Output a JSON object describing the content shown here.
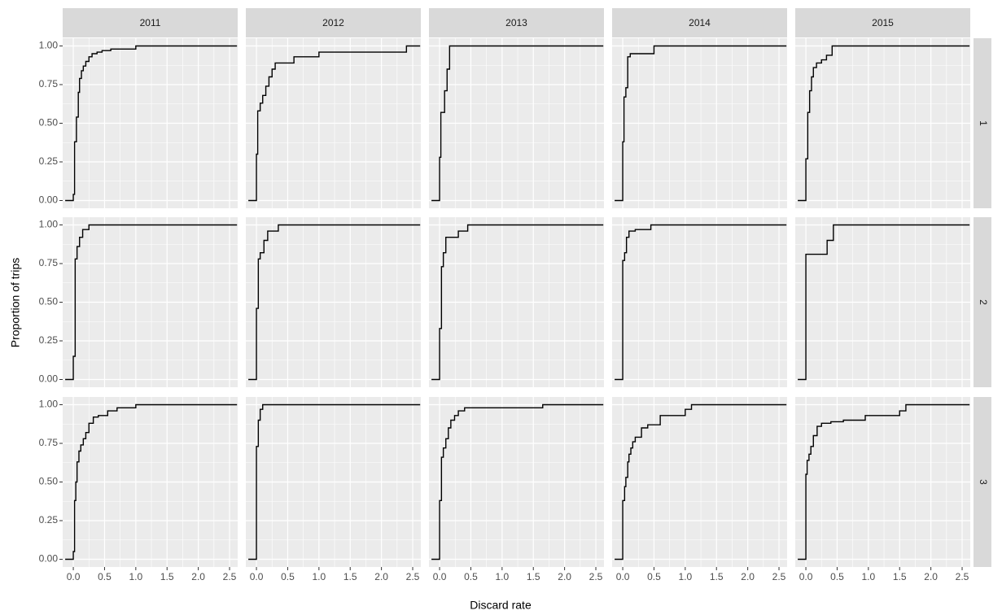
{
  "chart_data": {
    "type": "step",
    "xlabel": "Discard rate",
    "ylabel": "Proportion of trips",
    "col_labels": [
      "2011",
      "2012",
      "2013",
      "2014",
      "2015"
    ],
    "row_labels": [
      "1",
      "2",
      "3"
    ],
    "xlim": [
      -0.17,
      2.63
    ],
    "ylim": [
      -0.05,
      1.05
    ],
    "xticks": [
      {
        "value": 0,
        "label": "0.0"
      },
      {
        "value": 0.5,
        "label": "0.5"
      },
      {
        "value": 1,
        "label": "1.0"
      },
      {
        "value": 1.5,
        "label": "1.5"
      },
      {
        "value": 2,
        "label": "2.0"
      },
      {
        "value": 2.5,
        "label": "2.5"
      }
    ],
    "yticks": [
      {
        "value": 0,
        "label": "0.00"
      },
      {
        "value": 0.25,
        "label": "0.25"
      },
      {
        "value": 0.5,
        "label": "0.50"
      },
      {
        "value": 0.75,
        "label": "0.75"
      },
      {
        "value": 1,
        "label": "1.00"
      }
    ],
    "grid": true,
    "color": "#000000",
    "panels": [
      {
        "x": [
          -0.13,
          0.0,
          0.02,
          0.05,
          0.08,
          0.1,
          0.13,
          0.16,
          0.2,
          0.25,
          0.3,
          0.38,
          0.46,
          0.6,
          1.0,
          2.62
        ],
        "values": [
          0,
          0.04,
          0.38,
          0.54,
          0.7,
          0.79,
          0.84,
          0.87,
          0.9,
          0.93,
          0.95,
          0.96,
          0.97,
          0.98,
          1.0,
          1.0
        ]
      },
      {
        "x": [
          -0.13,
          0.0,
          0.02,
          0.06,
          0.1,
          0.15,
          0.2,
          0.25,
          0.3,
          0.6,
          1.0,
          2.4,
          2.62
        ],
        "values": [
          0,
          0.3,
          0.58,
          0.63,
          0.68,
          0.74,
          0.8,
          0.85,
          0.89,
          0.93,
          0.96,
          1.0,
          1.0
        ]
      },
      {
        "x": [
          -0.13,
          0.0,
          0.02,
          0.08,
          0.12,
          0.16,
          2.62
        ],
        "values": [
          0,
          0.28,
          0.57,
          0.71,
          0.85,
          1.0,
          1.0
        ]
      },
      {
        "x": [
          -0.13,
          0.0,
          0.02,
          0.05,
          0.08,
          0.12,
          0.5,
          2.62
        ],
        "values": [
          0,
          0.38,
          0.67,
          0.73,
          0.93,
          0.95,
          1.0,
          1.0
        ]
      },
      {
        "x": [
          -0.13,
          0.0,
          0.03,
          0.06,
          0.09,
          0.12,
          0.17,
          0.25,
          0.33,
          0.42,
          2.62
        ],
        "values": [
          0,
          0.27,
          0.57,
          0.71,
          0.8,
          0.86,
          0.89,
          0.91,
          0.94,
          1.0,
          1.0
        ]
      },
      {
        "x": [
          -0.13,
          0.0,
          0.03,
          0.06,
          0.1,
          0.15,
          0.25,
          2.62
        ],
        "values": [
          0,
          0.15,
          0.78,
          0.86,
          0.92,
          0.97,
          1.0,
          1.0
        ]
      },
      {
        "x": [
          -0.13,
          0.0,
          0.03,
          0.06,
          0.12,
          0.18,
          0.35,
          2.62
        ],
        "values": [
          0,
          0.46,
          0.78,
          0.82,
          0.9,
          0.96,
          1.0,
          1.0
        ]
      },
      {
        "x": [
          -0.13,
          0.0,
          0.03,
          0.06,
          0.1,
          0.3,
          0.45,
          2.62
        ],
        "values": [
          0,
          0.33,
          0.73,
          0.82,
          0.92,
          0.96,
          1.0,
          1.0
        ]
      },
      {
        "x": [
          -0.13,
          0.0,
          0.03,
          0.06,
          0.1,
          0.2,
          0.45,
          2.62
        ],
        "values": [
          0,
          0.77,
          0.82,
          0.92,
          0.96,
          0.97,
          1.0,
          1.0
        ]
      },
      {
        "x": [
          -0.13,
          0.0,
          0.34,
          0.44,
          2.62
        ],
        "values": [
          0,
          0.81,
          0.9,
          1.0,
          1.0
        ]
      },
      {
        "x": [
          -0.13,
          0.0,
          0.02,
          0.04,
          0.06,
          0.09,
          0.12,
          0.16,
          0.2,
          0.25,
          0.32,
          0.4,
          0.55,
          0.7,
          1.0,
          2.62
        ],
        "values": [
          0,
          0.05,
          0.38,
          0.5,
          0.63,
          0.7,
          0.74,
          0.78,
          0.82,
          0.88,
          0.92,
          0.93,
          0.96,
          0.98,
          1.0,
          1.0
        ]
      },
      {
        "x": [
          -0.13,
          0.0,
          0.03,
          0.06,
          0.1,
          2.62
        ],
        "values": [
          0,
          0.73,
          0.9,
          0.97,
          1.0,
          1.0
        ]
      },
      {
        "x": [
          -0.13,
          0.0,
          0.03,
          0.06,
          0.1,
          0.14,
          0.18,
          0.24,
          0.3,
          0.4,
          1.65,
          2.62
        ],
        "values": [
          0,
          0.38,
          0.66,
          0.72,
          0.78,
          0.85,
          0.9,
          0.93,
          0.96,
          0.98,
          1.0,
          1.0
        ]
      },
      {
        "x": [
          -0.13,
          0.0,
          0.03,
          0.05,
          0.08,
          0.1,
          0.13,
          0.16,
          0.2,
          0.3,
          0.4,
          0.6,
          1.0,
          1.1,
          2.62
        ],
        "values": [
          0,
          0.38,
          0.47,
          0.53,
          0.63,
          0.68,
          0.72,
          0.76,
          0.79,
          0.85,
          0.87,
          0.93,
          0.97,
          1.0,
          1.0
        ]
      },
      {
        "x": [
          -0.13,
          0.0,
          0.02,
          0.05,
          0.08,
          0.12,
          0.18,
          0.25,
          0.4,
          0.6,
          0.95,
          1.5,
          1.6,
          2.62
        ],
        "values": [
          0,
          0.55,
          0.64,
          0.68,
          0.73,
          0.8,
          0.86,
          0.88,
          0.89,
          0.9,
          0.93,
          0.96,
          1.0,
          1.0
        ]
      }
    ]
  }
}
